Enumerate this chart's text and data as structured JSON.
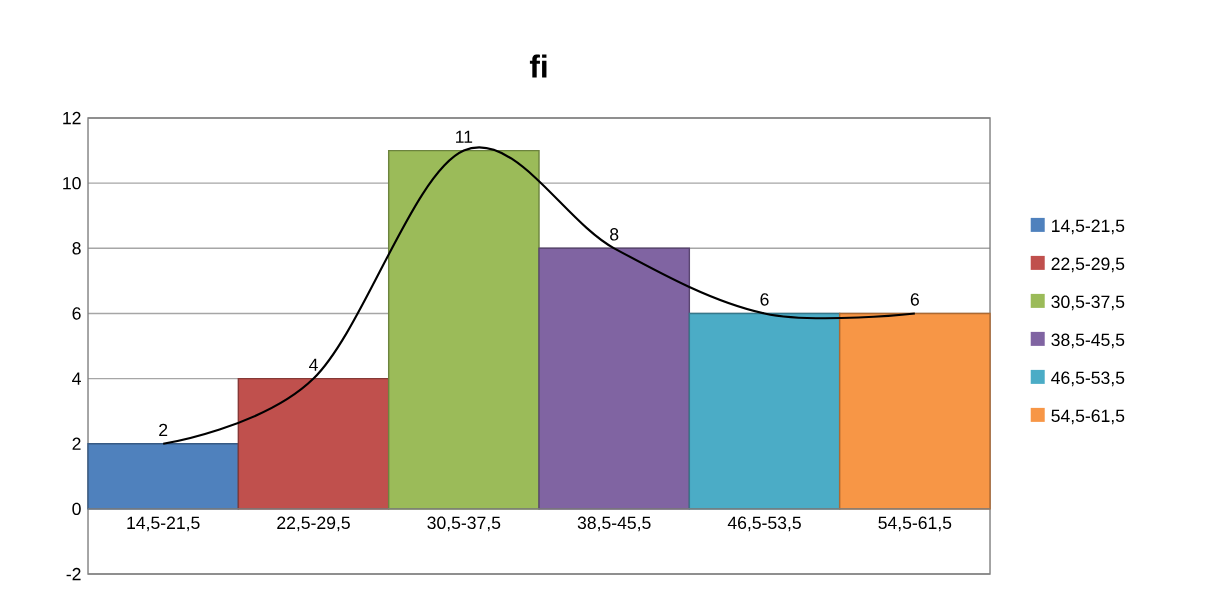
{
  "chart_data": {
    "type": "bar",
    "title": "fi",
    "categories": [
      "14,5-21,5",
      "22,5-29,5",
      "30,5-37,5",
      "38,5-45,5",
      "46,5-53,5",
      "54,5-61,5"
    ],
    "series": [
      {
        "type": "bar",
        "data_labels": true,
        "values": [
          2,
          4,
          11,
          8,
          6,
          6
        ],
        "colors": [
          "#4f81bd",
          "#c0504d",
          "#9bbb59",
          "#8064a2",
          "#4bacc6",
          "#f79646"
        ]
      },
      {
        "type": "line",
        "values": [
          2,
          4,
          11,
          8,
          6,
          6
        ],
        "color": "#000000"
      }
    ],
    "ylim": [
      -2,
      12
    ],
    "yticks": [
      -2,
      0,
      2,
      4,
      6,
      8,
      10,
      12
    ],
    "grid": "y"
  }
}
